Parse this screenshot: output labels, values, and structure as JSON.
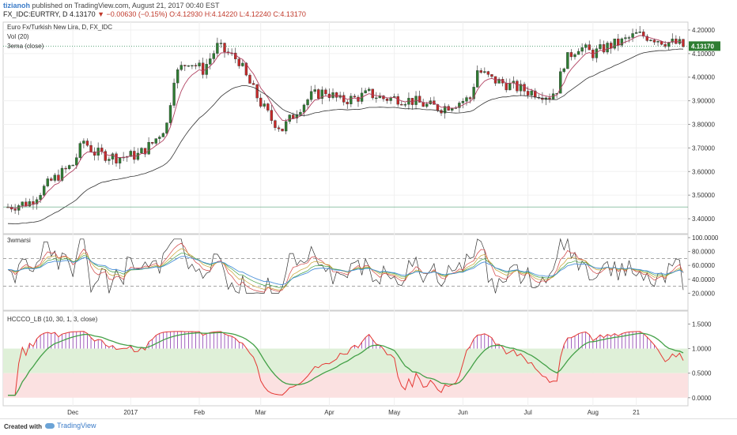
{
  "header": {
    "author": "tizianoh",
    "published": "published on TradingView.com, August 21, 2017 00:40 EST",
    "symbol": "FX_IDC:EURTRY, D",
    "last": "4.13170",
    "change": "−0.00630 (−0.15%)",
    "open": "O:4.12930",
    "high": "H:4.14220",
    "low": "L:4.12240",
    "close": "C:4.13170"
  },
  "main_pane": {
    "title": "Euro Fx/Turkish New Lira, D, FX_IDC",
    "vol_label": "Vol (20)",
    "ema_label": "3ema (close)",
    "price_tag": "4.13170",
    "y_ticks": [
      "4.20000",
      "4.10000",
      "4.00000",
      "3.90000",
      "3.80000",
      "3.70000",
      "3.60000",
      "3.50000",
      "3.40000"
    ]
  },
  "rsi_pane": {
    "title": "3wmarsi",
    "y_ticks": [
      "100.0000",
      "80.0000",
      "60.0000",
      "40.0000",
      "20.0000"
    ]
  },
  "osc_pane": {
    "title": "HCCCO_LB (10, 30, 1, 3, close)",
    "y_ticks": [
      "1.5000",
      "1.0000",
      "0.5000",
      "0.0000"
    ]
  },
  "x_axis": {
    "labels": [
      "Dec",
      "2017",
      "Feb",
      "Mar",
      "Apr",
      "May",
      "Jun",
      "Jul",
      "Aug",
      "21"
    ]
  },
  "footer": {
    "created_with": "Created with",
    "brand": "TradingView"
  },
  "colors": {
    "up": "#2e7d32",
    "down": "#c62828",
    "ema_fast": "#b04060",
    "ema_slow": "#333333",
    "green_band": "#dff0d8",
    "red_band": "#fbe1e1",
    "osc_red": "#e53935",
    "osc_green": "#43a047"
  },
  "chart_data": {
    "type": "candlestick",
    "series": [
      {
        "name": "EURTRY",
        "x_start": "Nov",
        "x_end": "21",
        "path": [
          [
            0,
            3.45
          ],
          [
            6,
            3.47
          ],
          [
            12,
            3.56
          ],
          [
            18,
            3.63
          ],
          [
            21,
            3.73
          ],
          [
            24,
            3.68
          ],
          [
            30,
            3.66
          ],
          [
            36,
            3.67
          ],
          [
            40,
            3.72
          ],
          [
            44,
            3.8
          ],
          [
            46,
            4.0
          ],
          [
            48,
            4.04
          ],
          [
            50,
            4.07
          ],
          [
            54,
            4.03
          ],
          [
            56,
            4.08
          ],
          [
            58,
            4.13
          ],
          [
            61,
            4.1
          ],
          [
            64,
            4.07
          ],
          [
            66,
            4.0
          ],
          [
            70,
            3.89
          ],
          [
            73,
            3.82
          ],
          [
            76,
            3.78
          ],
          [
            80,
            3.86
          ],
          [
            84,
            3.92
          ],
          [
            88,
            3.94
          ],
          [
            92,
            3.9
          ],
          [
            96,
            3.91
          ],
          [
            100,
            3.93
          ],
          [
            104,
            3.91
          ],
          [
            108,
            3.91
          ],
          [
            112,
            3.9
          ],
          [
            116,
            3.88
          ],
          [
            120,
            3.87
          ],
          [
            124,
            3.89
          ],
          [
            128,
            3.91
          ],
          [
            130,
            4.03
          ],
          [
            134,
            3.99
          ],
          [
            138,
            3.97
          ],
          [
            140,
            3.96
          ],
          [
            144,
            3.94
          ],
          [
            148,
            3.93
          ],
          [
            150,
            3.92
          ],
          [
            152,
            3.95
          ],
          [
            154,
            4.06
          ],
          [
            156,
            4.1
          ],
          [
            158,
            4.13
          ],
          [
            162,
            4.1
          ],
          [
            166,
            4.13
          ],
          [
            170,
            4.15
          ],
          [
            174,
            4.18
          ],
          [
            178,
            4.17
          ],
          [
            182,
            4.15
          ],
          [
            186,
            4.14
          ],
          [
            187,
            4.13
          ]
        ]
      }
    ]
  }
}
